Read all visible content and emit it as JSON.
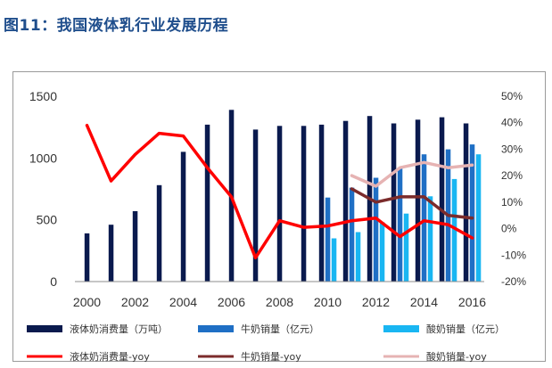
{
  "title": "图11：我国液体乳行业发展历程",
  "colors": {
    "liquid_bar": "#0a1a4e",
    "milk_bar": "#1f6fc5",
    "yogurt_bar": "#19b6f2",
    "liquid_yoy": "#ff0000",
    "milk_yoy": "#7b2b2b",
    "yogurt_yoy": "#e6b3b3"
  },
  "chart_data": {
    "type": "bar+line",
    "categories": [
      "2000",
      "2001",
      "2002",
      "2003",
      "2004",
      "2005",
      "2006",
      "2007",
      "2008",
      "2009",
      "2010",
      "2011",
      "2012",
      "2013",
      "2014",
      "2015",
      "2016"
    ],
    "x_tick_labels": [
      "2000",
      "2002",
      "2004",
      "2006",
      "2008",
      "2010",
      "2012",
      "2014",
      "2016"
    ],
    "left_axis": {
      "ylim": [
        0,
        1500
      ],
      "ticks": [
        "0",
        "500",
        "1000",
        "1500"
      ]
    },
    "right_axis": {
      "ylim": [
        -20,
        50
      ],
      "ticks": [
        "-20%",
        "-10%",
        "0%",
        "10%",
        "20%",
        "30%",
        "40%",
        "50%"
      ]
    },
    "bars": [
      {
        "name": "液体奶消费量（万吨）",
        "color_key": "liquid_bar",
        "values": [
          390,
          460,
          570,
          780,
          1050,
          1270,
          1390,
          1230,
          1260,
          1260,
          1270,
          1300,
          1340,
          1280,
          1310,
          1330,
          1280
        ]
      },
      {
        "name": "牛奶销量（亿元）",
        "color_key": "milk_bar",
        "values": [
          null,
          null,
          null,
          null,
          null,
          null,
          null,
          null,
          null,
          null,
          680,
          760,
          840,
          920,
          1030,
          1070,
          1110
        ]
      },
      {
        "name": "酸奶销量（亿元）",
        "color_key": "yogurt_bar",
        "values": [
          null,
          null,
          null,
          null,
          null,
          null,
          null,
          null,
          null,
          null,
          350,
          400,
          480,
          550,
          690,
          830,
          1030
        ]
      }
    ],
    "lines": [
      {
        "name": "液体奶消费量-yoy",
        "color_key": "liquid_yoy",
        "width": 3.5,
        "values": [
          39,
          18,
          28,
          36,
          35,
          23,
          12,
          -11,
          3,
          0.5,
          1,
          3,
          4,
          -3,
          3,
          1.5,
          -3.5
        ]
      },
      {
        "name": "牛奶销量-yoy",
        "color_key": "milk_yoy",
        "width": 3.5,
        "values": [
          null,
          null,
          null,
          null,
          null,
          null,
          null,
          null,
          null,
          null,
          null,
          15,
          10,
          12,
          12,
          5,
          4
        ]
      },
      {
        "name": "酸奶销量-yoy",
        "color_key": "yogurt_yoy",
        "width": 3.5,
        "values": [
          null,
          null,
          null,
          null,
          null,
          null,
          null,
          null,
          null,
          null,
          null,
          20,
          16,
          23,
          25,
          23,
          24
        ]
      }
    ],
    "legend_position": "bottom"
  },
  "legend": [
    {
      "label": "液体奶消费量（万吨）",
      "kind": "bar",
      "color_key": "liquid_bar"
    },
    {
      "label": "牛奶销量（亿元）",
      "kind": "bar",
      "color_key": "milk_bar"
    },
    {
      "label": "酸奶销量（亿元）",
      "kind": "bar",
      "color_key": "yogurt_bar"
    },
    {
      "label": "液体奶消费量-yoy",
      "kind": "line",
      "color_key": "liquid_yoy"
    },
    {
      "label": "牛奶销量-yoy",
      "kind": "line",
      "color_key": "milk_yoy"
    },
    {
      "label": "酸奶销量-yoy",
      "kind": "line",
      "color_key": "yogurt_yoy"
    }
  ]
}
